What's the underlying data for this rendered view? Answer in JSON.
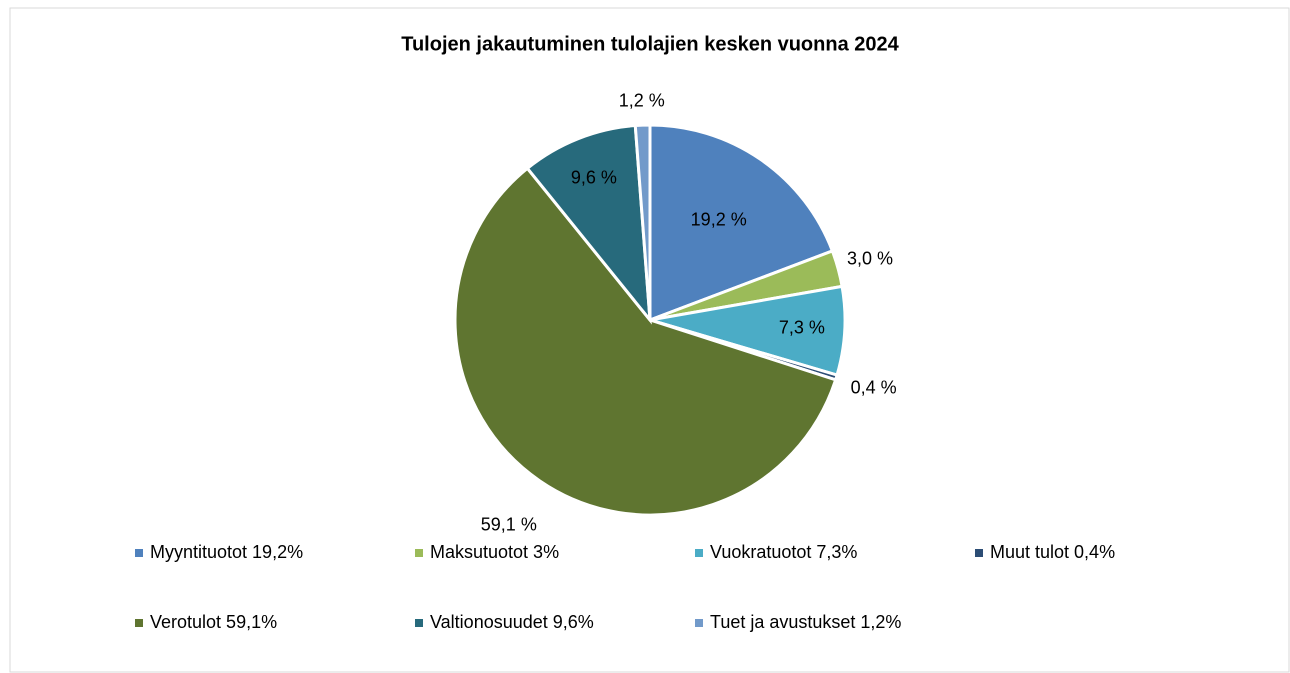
{
  "chart_data": {
    "type": "pie",
    "title": "Tulojen jakautuminen tulolajien kesken vuonna 2024",
    "categories": [
      "Myyntituotot 19,2%",
      "Maksutuotot 3%",
      "Vuokratuotot 7,3%",
      "Muut tulot 0,4%",
      "Verotulot 59,1%",
      "Valtionosuudet 9,6%",
      "Tuet ja avustukset 1,2%"
    ],
    "values": [
      19.2,
      3.0,
      7.3,
      0.4,
      59.1,
      9.6,
      1.2
    ],
    "value_labels": [
      "19,2 %",
      "3,0 %",
      "7,3 %",
      "0,4 %",
      "59,1 %",
      "9,6 %",
      "1,2 %"
    ],
    "colors": [
      "#4f81bd",
      "#9bbb59",
      "#4bacc6",
      "#2c4d75",
      "#5f7530",
      "#276a7c",
      "#729aca"
    ],
    "legend": "bottom"
  }
}
